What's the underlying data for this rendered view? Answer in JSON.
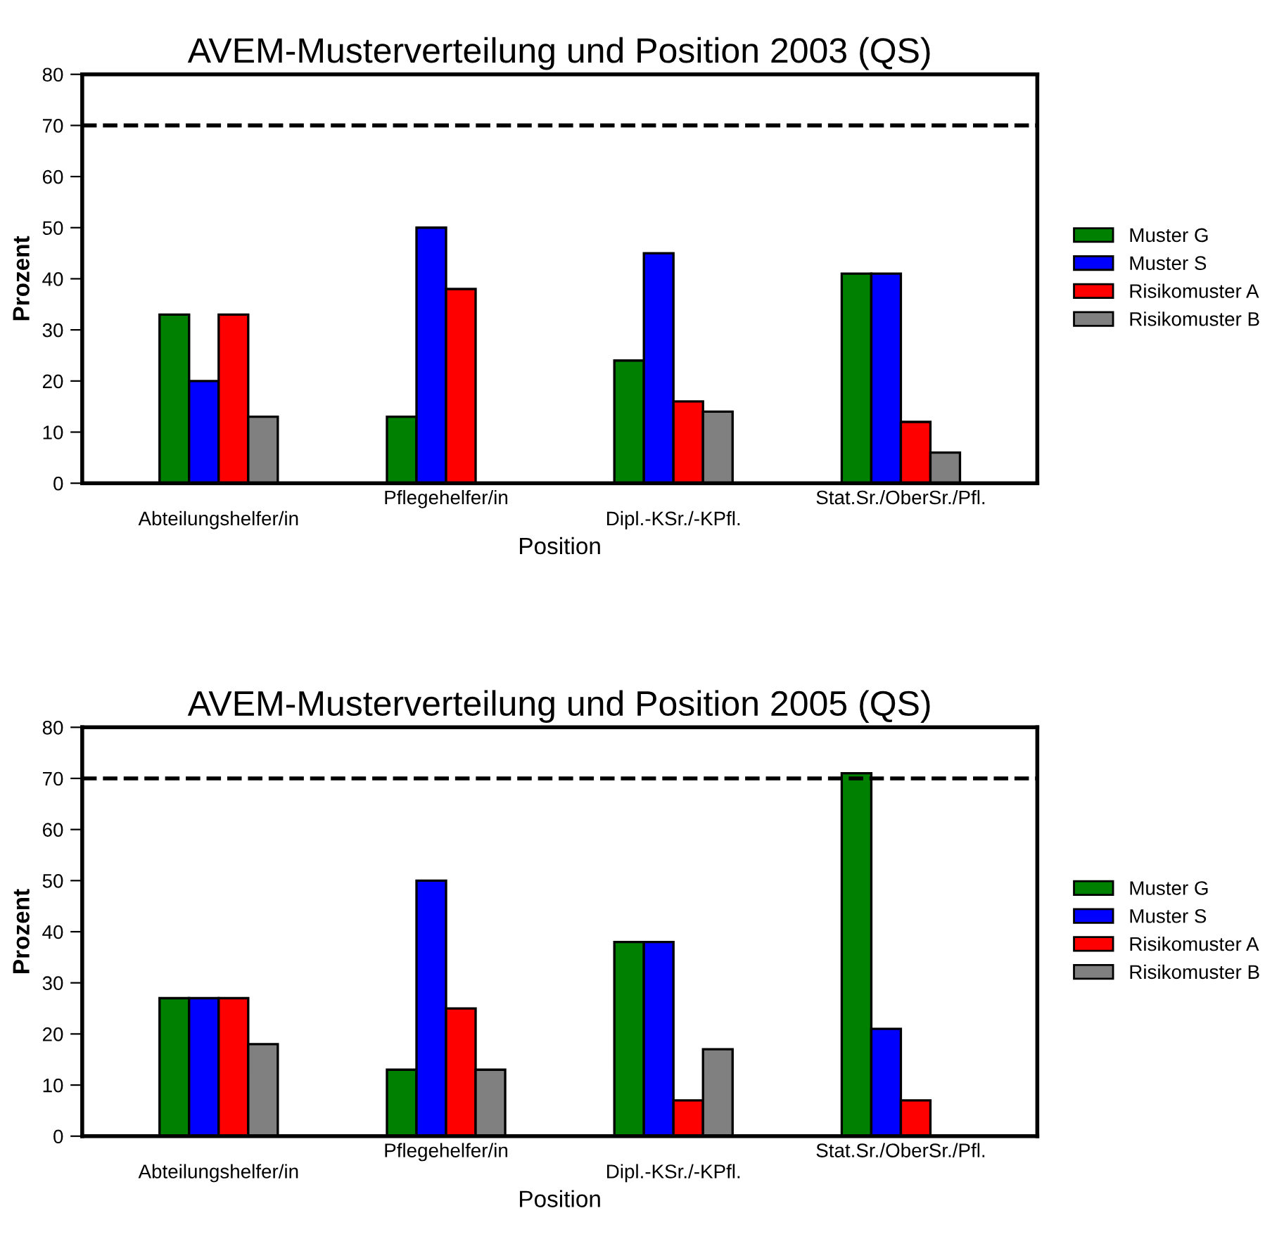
{
  "chart_data": [
    {
      "type": "bar",
      "title": "AVEM-Musterverteilung und Position 2003 (QS)",
      "xlabel": "Position",
      "ylabel": "Prozent",
      "categories": [
        "Abteilungshelfer/in",
        "Pflegehelfer/in",
        "Dipl.-KSr./-KPfl.",
        "Stat.Sr./OberSr./Pfl."
      ],
      "series": [
        {
          "name": "Muster G",
          "color": "#008000",
          "values": [
            33,
            13,
            24,
            41
          ]
        },
        {
          "name": "Muster S",
          "color": "#0000ff",
          "values": [
            20,
            50,
            45,
            41
          ]
        },
        {
          "name": "Risikomuster A",
          "color": "#ff0000",
          "values": [
            33,
            38,
            16,
            12
          ]
        },
        {
          "name": "Risikomuster B",
          "color": "#808080",
          "values": [
            13,
            null,
            14,
            6
          ]
        }
      ],
      "ylim": [
        0,
        80
      ],
      "yticks": [
        0,
        10,
        20,
        30,
        40,
        50,
        60,
        70,
        80
      ],
      "grid": false,
      "legend": "right",
      "ref_lines": [
        {
          "axis": "y",
          "value": 70,
          "color": "#000000",
          "line_style": "dashed"
        }
      ]
    },
    {
      "type": "bar",
      "title": "AVEM-Musterverteilung und Position 2005 (QS)",
      "xlabel": "Position",
      "ylabel": "Prozent",
      "categories": [
        "Abteilungshelfer/in",
        "Pflegehelfer/in",
        "Dipl.-KSr./-KPfl.",
        "Stat.Sr./OberSr./Pfl."
      ],
      "series": [
        {
          "name": "Muster G",
          "color": "#008000",
          "values": [
            27,
            13,
            38,
            71
          ]
        },
        {
          "name": "Muster S",
          "color": "#0000ff",
          "values": [
            27,
            50,
            38,
            21
          ]
        },
        {
          "name": "Risikomuster A",
          "color": "#ff0000",
          "values": [
            27,
            25,
            7,
            7
          ]
        },
        {
          "name": "Risikomuster B",
          "color": "#808080",
          "values": [
            18,
            13,
            17,
            null
          ]
        }
      ],
      "ylim": [
        0,
        80
      ],
      "yticks": [
        0,
        10,
        20,
        30,
        40,
        50,
        60,
        70,
        80
      ],
      "grid": false,
      "legend": "right",
      "ref_lines": [
        {
          "axis": "y",
          "value": 70,
          "color": "#000000",
          "line_style": "dashed"
        }
      ]
    }
  ]
}
